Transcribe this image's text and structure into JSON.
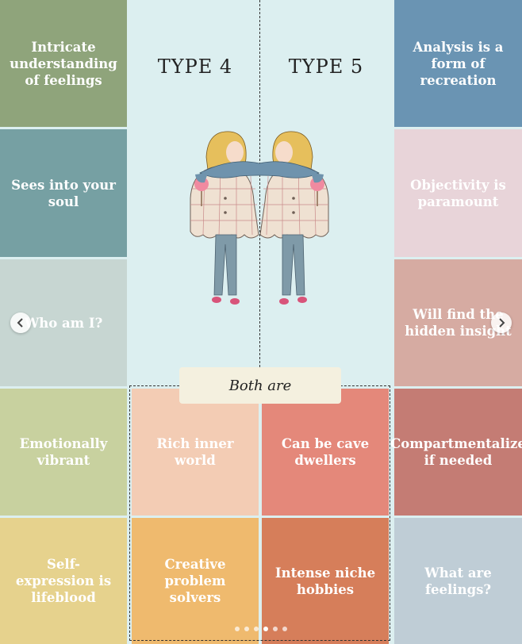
{
  "header": {
    "left_type": "TYPE 4",
    "right_type": "TYPE 5"
  },
  "shared_label": "Both are",
  "tiles": {
    "l1": {
      "text": "Intricate understanding of feelings",
      "color": "#8fa47b"
    },
    "l2": {
      "text": "Sees into your soul",
      "color": "#76a0a3"
    },
    "l3": {
      "text": "Who am I?",
      "color": "#c7d6d2"
    },
    "l4": {
      "text": "Emotionally vibrant",
      "color": "#c8d19f"
    },
    "l5": {
      "text": "Self-expression is lifeblood",
      "color": "#e6d28d"
    },
    "r1": {
      "text": "Analysis is a form of recreation",
      "color": "#6a94b3"
    },
    "r2": {
      "text": "Objectivity is paramount",
      "color": "#e8d4d9"
    },
    "r3": {
      "text": "Will find the hidden insight",
      "color": "#d6aba2"
    },
    "r4": {
      "text": "Compartmentalize if needed",
      "color": "#c47c74"
    },
    "r5": {
      "text": "What are feelings?",
      "color": "#bfcdd6"
    },
    "c1": {
      "text": "Rich inner world",
      "color": "#f3ccb4"
    },
    "c2": {
      "text": "Can be cave dwellers",
      "color": "#e4887a"
    },
    "c3": {
      "text": "Creative problem solvers",
      "color": "#efba6e"
    },
    "c4": {
      "text": "Intense niche hobbies",
      "color": "#d67e5a"
    }
  },
  "carousel": {
    "dot_count": 6,
    "active_index": 3
  },
  "icons": {
    "prev": "chevron-left-icon",
    "next": "chevron-right-icon"
  }
}
